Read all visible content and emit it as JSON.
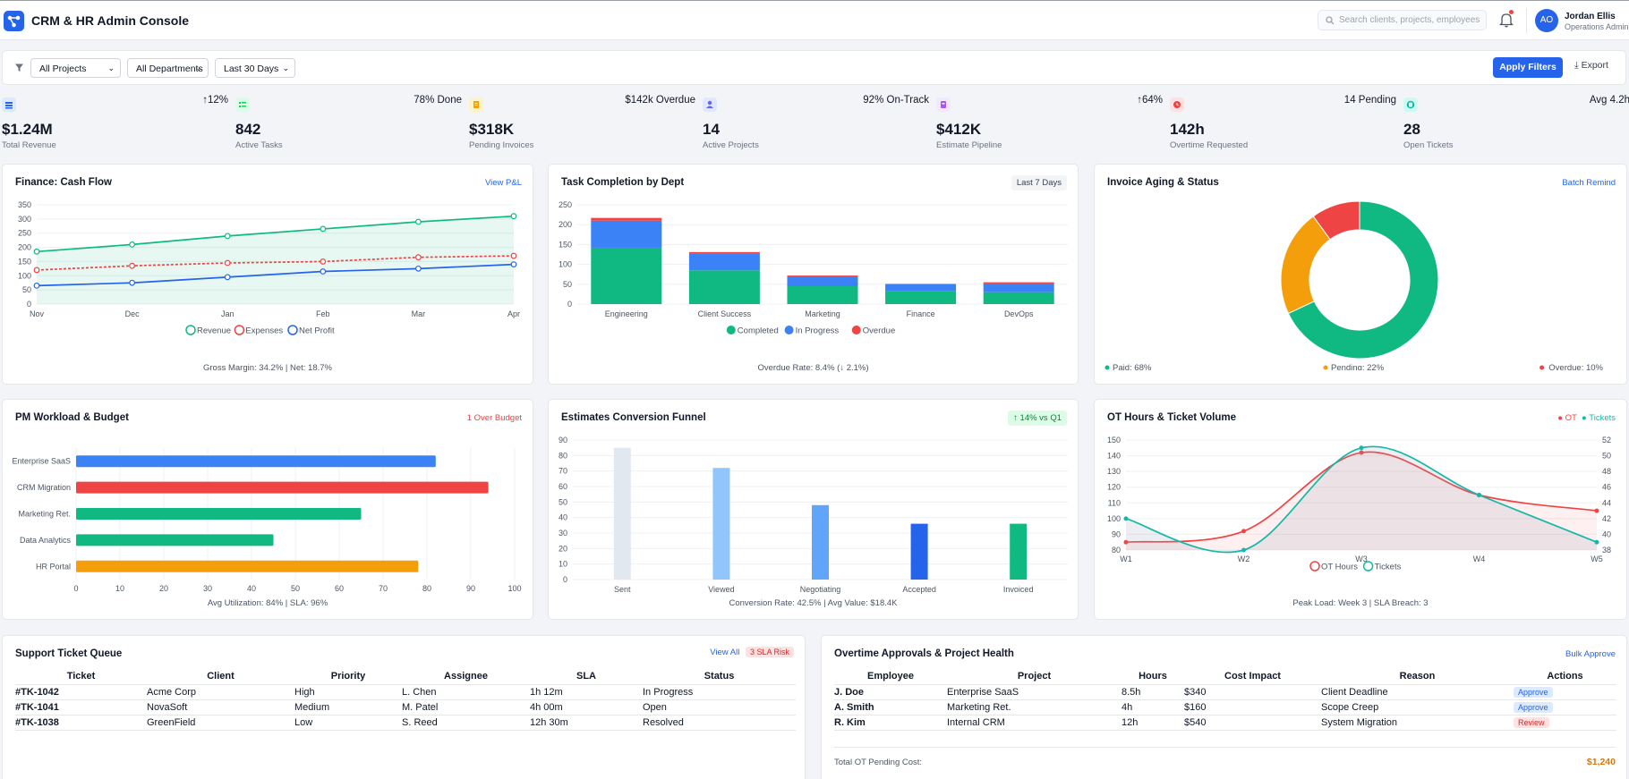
{
  "app": {
    "title": "CRM & HR Admin Console"
  },
  "search": {
    "placeholder": "Search clients, projects, employees"
  },
  "user": {
    "name": "Jordan Ellis",
    "role": "Operations Admin",
    "initials": "AO"
  },
  "filters": {
    "project": "All Projects",
    "department": "All Departments",
    "range": "Last 30 Days",
    "apply_label": "Apply Filters",
    "export_label": "Export"
  },
  "kpis": [
    {
      "value": "$1.24M",
      "label": "Total Revenue",
      "trend": "↑12%",
      "color": "#2563eb",
      "icon": "revenue-icon"
    },
    {
      "value": "842",
      "label": "Active Tasks",
      "trend": "78% Done",
      "color": "#22c55e",
      "icon": "tasks-icon"
    },
    {
      "value": "$318K",
      "label": "Pending Invoices",
      "trend": "$142k Overdue",
      "color": "#f59e0b",
      "icon": "invoice-icon"
    },
    {
      "value": "14",
      "label": "Active Projects",
      "trend": "92% On-Track",
      "color": "#6366f1",
      "icon": "project-icon"
    },
    {
      "value": "$412K",
      "label": "Estimate Pipeline",
      "trend": "↑64%",
      "color": "#a855f7",
      "icon": "pipeline-icon"
    },
    {
      "value": "142h",
      "label": "Overtime Requested",
      "trend": "14 Pending",
      "color": "#ef4444",
      "icon": "clock-icon"
    },
    {
      "value": "28",
      "label": "Open Tickets",
      "trend": "Avg 4.2h",
      "color": "#14b8a6",
      "icon": "ticket-icon"
    }
  ],
  "cards": {
    "cashflow": {
      "title": "Finance: Cash Flow",
      "link": "View P&L",
      "foot": "Gross Margin: 34.2% | Net: 18.7%"
    },
    "tasks": {
      "title": "Task Completion by Dept",
      "badge": "Last 7 Days",
      "foot": "Overdue Rate: 8.4% (↓ 2.1%)"
    },
    "invoice": {
      "title": "Invoice Aging & Status",
      "link": "Batch Remind"
    },
    "pm": {
      "title": "PM Workload & Budget",
      "link": "1 Over Budget",
      "foot": "Avg Utilization: 84% | SLA: 96%"
    },
    "funnel": {
      "title": "Estimates Conversion Funnel",
      "badge": "↑ 14% vs Q1",
      "foot": "Conversion Rate: 42.5% | Avg Value: $18.4K"
    },
    "ot": {
      "title": "OT Hours & Ticket Volume",
      "legend_ot": "● OT",
      "legend_tickets": "● Tickets",
      "foot": "Peak Load: Week 3 | SLA Breach: 3"
    }
  },
  "chart_data": [
    {
      "type": "line",
      "x": [
        "Nov",
        "Dec",
        "Jan",
        "Feb",
        "Mar",
        "Apr"
      ],
      "ylim": [
        0,
        350
      ],
      "yticks": [
        0,
        50,
        100,
        150,
        200,
        250,
        300,
        350
      ],
      "series": [
        {
          "name": "Revenue",
          "values": [
            185,
            210,
            240,
            265,
            290,
            310
          ],
          "color": "#10b981"
        },
        {
          "name": "Expenses",
          "values": [
            120,
            135,
            145,
            150,
            165,
            170
          ],
          "color": "#ef4444"
        },
        {
          "name": "Net Profit",
          "values": [
            65,
            75,
            95,
            115,
            125,
            140
          ],
          "color": "#2563eb"
        }
      ]
    },
    {
      "type": "bar",
      "stacked": true,
      "categories": [
        "Engineering",
        "Client Success",
        "Marketing",
        "Finance",
        "DevOps"
      ],
      "ylim": [
        0,
        250
      ],
      "yticks": [
        0,
        50,
        100,
        150,
        200,
        250
      ],
      "series": [
        {
          "name": "Completed",
          "values": [
            142,
            85,
            45,
            33,
            30
          ],
          "color": "#10b981"
        },
        {
          "name": "In Progress",
          "values": [
            68,
            42,
            25,
            17,
            22
          ],
          "color": "#3b82f6"
        },
        {
          "name": "Overdue",
          "values": [
            7,
            4,
            2,
            1,
            3
          ],
          "color": "#ef4444"
        }
      ]
    },
    {
      "type": "pie",
      "categories": [
        "Paid",
        "Pending",
        "Overdue"
      ],
      "values": [
        68,
        22,
        10
      ],
      "legend": [
        "Paid: 68%",
        "Pending: 22%",
        "Overdue: 10%"
      ],
      "colors": [
        "#10b981",
        "#f59e0b",
        "#ef4444"
      ]
    },
    {
      "type": "bar",
      "orientation": "horizontal",
      "categories": [
        "Enterprise SaaS",
        "CRM Migration",
        "Marketing Ret.",
        "Data Analytics",
        "HR Portal"
      ],
      "values": [
        82,
        94,
        65,
        45,
        78
      ],
      "colors": [
        "#3b82f6",
        "#ef4444",
        "#10b981",
        "#10b981",
        "#f59e0b"
      ],
      "xlim": [
        0,
        100
      ],
      "xticks": [
        0,
        10,
        20,
        30,
        40,
        50,
        60,
        70,
        80,
        90,
        100
      ]
    },
    {
      "type": "bar",
      "categories": [
        "Sent",
        "Viewed",
        "Negotiating",
        "Accepted",
        "Invoiced"
      ],
      "values": [
        85,
        72,
        48,
        36,
        36
      ],
      "colors": [
        "#e2e8f0",
        "#93c5fd",
        "#60a5fa",
        "#2563eb",
        "#10b981"
      ],
      "ylim": [
        0,
        90
      ],
      "yticks": [
        0,
        10,
        20,
        30,
        40,
        50,
        60,
        70,
        80,
        90
      ]
    },
    {
      "type": "line",
      "x": [
        "W1",
        "W2",
        "W3",
        "W4",
        "W5"
      ],
      "ylim": [
        80,
        150
      ],
      "yticks": [
        80,
        90,
        100,
        110,
        120,
        130,
        140,
        150
      ],
      "y2lim": [
        38,
        52
      ],
      "y2ticks": [
        38,
        40,
        42,
        44,
        46,
        48,
        50,
        52
      ],
      "series": [
        {
          "name": "OT Hours",
          "axis": "left",
          "values": [
            85,
            92,
            142,
            115,
            105
          ],
          "color": "#ef4444"
        },
        {
          "name": "Tickets",
          "axis": "right",
          "values": [
            42,
            38,
            51,
            45,
            39
          ],
          "color": "#14b8a6"
        }
      ]
    }
  ],
  "tickets": {
    "title": "Support Ticket Queue",
    "link": "View All",
    "badge": "3 SLA Risk",
    "columns": [
      "Ticket",
      "Client",
      "Priority",
      "Assignee",
      "SLA",
      "Status"
    ],
    "rows": [
      [
        "#TK-1042",
        "Acme Corp",
        "High",
        "L. Chen",
        "1h 12m",
        "In Progress"
      ],
      [
        "#TK-1041",
        "NovaSoft",
        "Medium",
        "M. Patel",
        "4h 00m",
        "Open"
      ],
      [
        "#TK-1038",
        "GreenField",
        "Low",
        "S. Reed",
        "12h 30m",
        "Resolved"
      ]
    ]
  },
  "overtime": {
    "title": "Overtime Approvals & Project Health",
    "link": "Bulk Approve",
    "columns": [
      "Employee",
      "Project",
      "Hours",
      "Cost Impact",
      "Reason",
      "Actions"
    ],
    "rows": [
      [
        "J. Doe",
        "Enterprise SaaS",
        "8.5h",
        "$340",
        "Client Deadline",
        "Approve"
      ],
      [
        "A. Smith",
        "Marketing Ret.",
        "4h",
        "$160",
        "Scope Creep",
        "Approve"
      ],
      [
        "R. Kim",
        "Internal CRM",
        "12h",
        "$540",
        "System Migration",
        "Review"
      ]
    ],
    "total_label": "Total OT Pending Cost:",
    "total_value": "$1,240"
  }
}
